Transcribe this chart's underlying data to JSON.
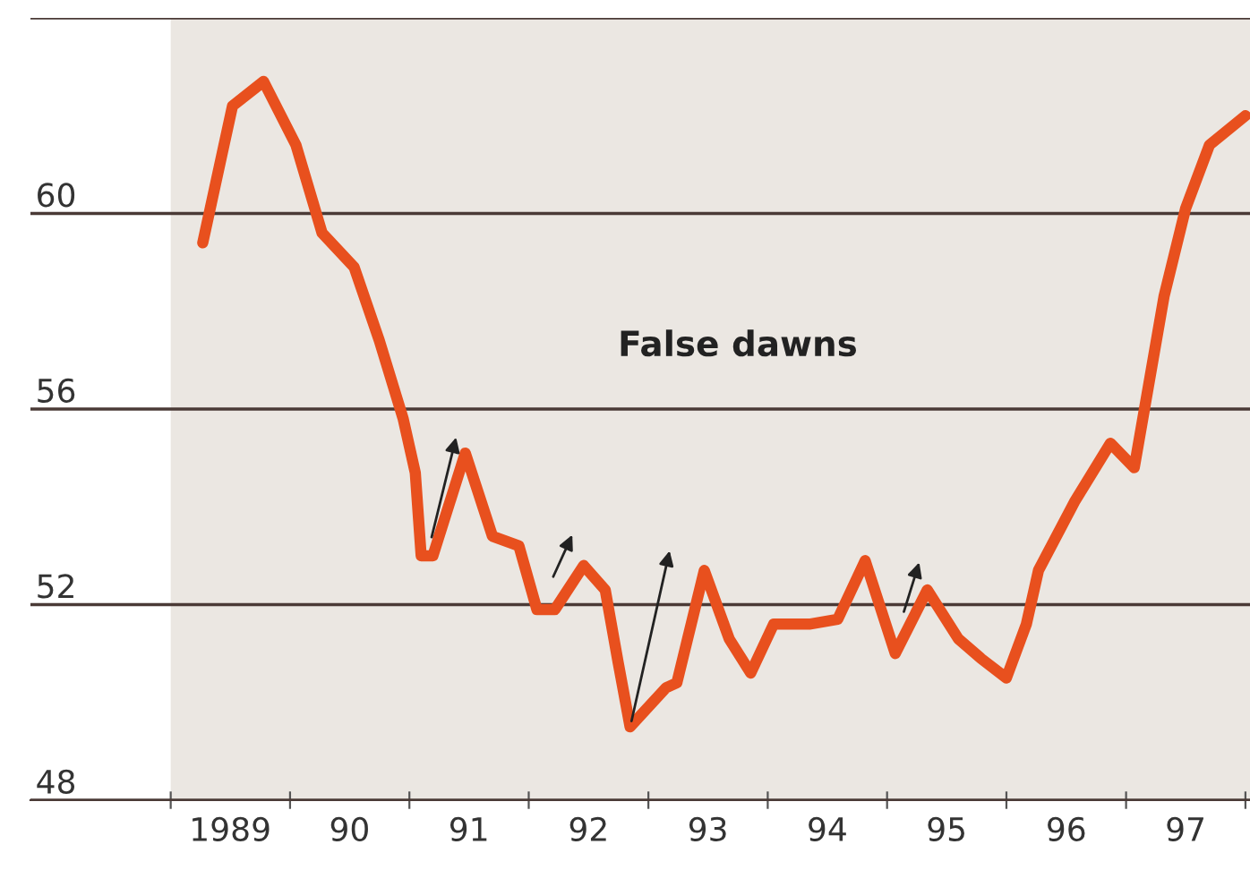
{
  "chart_data": {
    "type": "line",
    "x": [
      "1989-04-09",
      "1989-07-09",
      "1989-10-12",
      "1990-01-19",
      "1990-04-09",
      "1990-07-16",
      "1990-10-01",
      "1990-12-13",
      "1991-01-19",
      "1991-02-06",
      "1991-03-14",
      "1991-06-21",
      "1991-09-12",
      "1991-12-02",
      "1992-01-26",
      "1992-03-21",
      "1992-06-17",
      "1992-08-22",
      "1992-10-01",
      "1992-11-06",
      "1993-02-24",
      "1993-03-29",
      "1993-06-21",
      "1993-09-05",
      "1993-11-10",
      "1994-01-19",
      "1994-05-08",
      "1994-08-03",
      "1994-10-26",
      "1995-01-26",
      "1995-05-04",
      "1995-08-07",
      "1995-10-15",
      "1996-01-01",
      "1996-03-02",
      "1996-04-08",
      "1996-07-27",
      "1996-11-14",
      "1997-01-26",
      "1997-04-27",
      "1997-07-02",
      "1997-09-13",
      "1998-01-01"
    ],
    "series": [
      {
        "color": "#e8501e",
        "values": [
          59.4,
          62.2,
          62.7,
          61.4,
          59.6,
          58.9,
          57.4,
          55.8,
          54.7,
          53.0,
          53.0,
          55.1,
          53.4,
          53.2,
          51.9,
          51.9,
          52.8,
          52.3,
          50.8,
          49.5,
          50.3,
          50.4,
          52.7,
          51.3,
          50.6,
          51.6,
          51.6,
          51.7,
          52.9,
          51.0,
          52.3,
          51.3,
          50.9,
          50.5,
          51.6,
          52.7,
          54.1,
          55.3,
          54.8,
          58.3,
          60.1,
          61.4,
          62.0
        ]
      }
    ],
    "xlim": [
      "1987-10-30",
      "1998-01-15"
    ],
    "xticks": [
      {
        "value": "1989",
        "label": null
      },
      {
        "value": "1989-07-02",
        "label": "1989"
      },
      {
        "value": "1990",
        "label": null
      },
      {
        "value": "1990-07-02",
        "label": "90"
      },
      {
        "value": "1991",
        "label": null
      },
      {
        "value": "1991-07-02",
        "label": "91"
      },
      {
        "value": "1992",
        "label": null
      },
      {
        "value": "1992-07-02",
        "label": "92"
      },
      {
        "value": "1993",
        "label": null
      },
      {
        "value": "1993-07-02",
        "label": "93"
      },
      {
        "value": "1994",
        "label": null
      },
      {
        "value": "1994-07-02",
        "label": "94"
      },
      {
        "value": "1995",
        "label": null
      },
      {
        "value": "1995-07-02",
        "label": "95"
      },
      {
        "value": "1996",
        "label": null
      },
      {
        "value": "1996-07-02",
        "label": "96"
      },
      {
        "value": "1997",
        "label": null
      },
      {
        "value": "1997-07-02",
        "label": "97"
      },
      {
        "value": "1998",
        "label": null
      }
    ],
    "ylim": [
      48,
      64
    ],
    "yticks": [
      48,
      52,
      56,
      60,
      {
        "value": 64,
        "label": null
      }
    ],
    "grid": "y",
    "bands": [
      {
        "axis": "x",
        "from": "1989",
        "to": "1998-01-15",
        "color": "#ebe7e2"
      }
    ],
    "annotations": [
      "False dawns"
    ]
  }
}
